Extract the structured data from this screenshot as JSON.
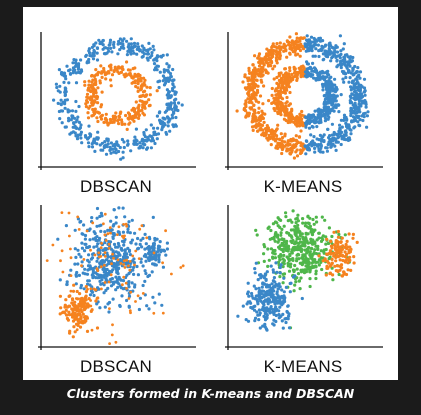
{
  "caption": "Clusters formed in K-means and DBSCAN",
  "colors": {
    "blue": "#3a87c8",
    "orange": "#f5821f",
    "green": "#4fb64a",
    "axis": "#111111",
    "background": "#1b1b1b",
    "frame": "#ffffff"
  },
  "chart_data": [
    {
      "type": "scatter",
      "label": "DBSCAN",
      "title": "",
      "xlabel": "",
      "ylabel": "",
      "grid": false,
      "xlim": [
        -1.25,
        1.25
      ],
      "ylim": [
        -1.25,
        1.25
      ],
      "series": [
        {
          "color": "blue",
          "shape": "ring",
          "center": [
            0,
            0
          ],
          "radius": 1.0,
          "spread": 0.09,
          "count": 480
        },
        {
          "color": "orange",
          "shape": "ring",
          "center": [
            0,
            0
          ],
          "radius": 0.5,
          "spread": 0.07,
          "count": 280
        }
      ]
    },
    {
      "type": "scatter",
      "label": "K-MEANS",
      "title": "",
      "xlabel": "",
      "ylabel": "",
      "grid": false,
      "xlim": [
        -1.25,
        1.25
      ],
      "ylim": [
        -1.25,
        1.25
      ],
      "split_by": "x",
      "series": [
        {
          "color": "orange",
          "shape": "ring-half",
          "side": "left",
          "center": [
            0,
            0
          ],
          "radius": 1.0,
          "inner_radius": 0.5,
          "spread": 0.09,
          "count": 760
        },
        {
          "color": "blue",
          "shape": "ring-half",
          "side": "right",
          "center": [
            0,
            0
          ],
          "radius": 1.0,
          "inner_radius": 0.5,
          "spread": 0.09,
          "count": 760
        }
      ]
    },
    {
      "type": "scatter",
      "label": "DBSCAN",
      "title": "",
      "xlabel": "",
      "ylabel": "",
      "grid": false,
      "xlim": [
        0,
        10
      ],
      "ylim": [
        0,
        10
      ],
      "series": [
        {
          "color": "blue",
          "shape": "blob",
          "center": [
            4.6,
            6.2
          ],
          "sd": [
            1.35,
            1.6
          ],
          "count": 430
        },
        {
          "color": "blue",
          "shape": "blob",
          "center": [
            7.8,
            6.6
          ],
          "sd": [
            0.35,
            0.5
          ],
          "count": 70
        },
        {
          "color": "orange",
          "shape": "blob",
          "center": [
            2.3,
            2.5
          ],
          "sd": [
            0.5,
            0.7
          ],
          "count": 140
        },
        {
          "color": "orange",
          "shape": "noise",
          "center": [
            4.5,
            5.5
          ],
          "sd": [
            2.3,
            2.6
          ],
          "count": 120
        }
      ]
    },
    {
      "type": "scatter",
      "label": "K-MEANS",
      "title": "",
      "xlabel": "",
      "ylabel": "",
      "grid": false,
      "xlim": [
        0,
        10
      ],
      "ylim": [
        0,
        10
      ],
      "series": [
        {
          "color": "green",
          "shape": "blob",
          "center": [
            4.8,
            7.0
          ],
          "sd": [
            1.2,
            1.2
          ],
          "count": 420
        },
        {
          "color": "orange",
          "shape": "blob",
          "center": [
            7.6,
            6.5
          ],
          "sd": [
            0.5,
            0.7
          ],
          "count": 120
        },
        {
          "color": "blue",
          "shape": "blob",
          "center": [
            2.6,
            3.3
          ],
          "sd": [
            0.75,
            1.05
          ],
          "count": 250
        }
      ]
    }
  ]
}
